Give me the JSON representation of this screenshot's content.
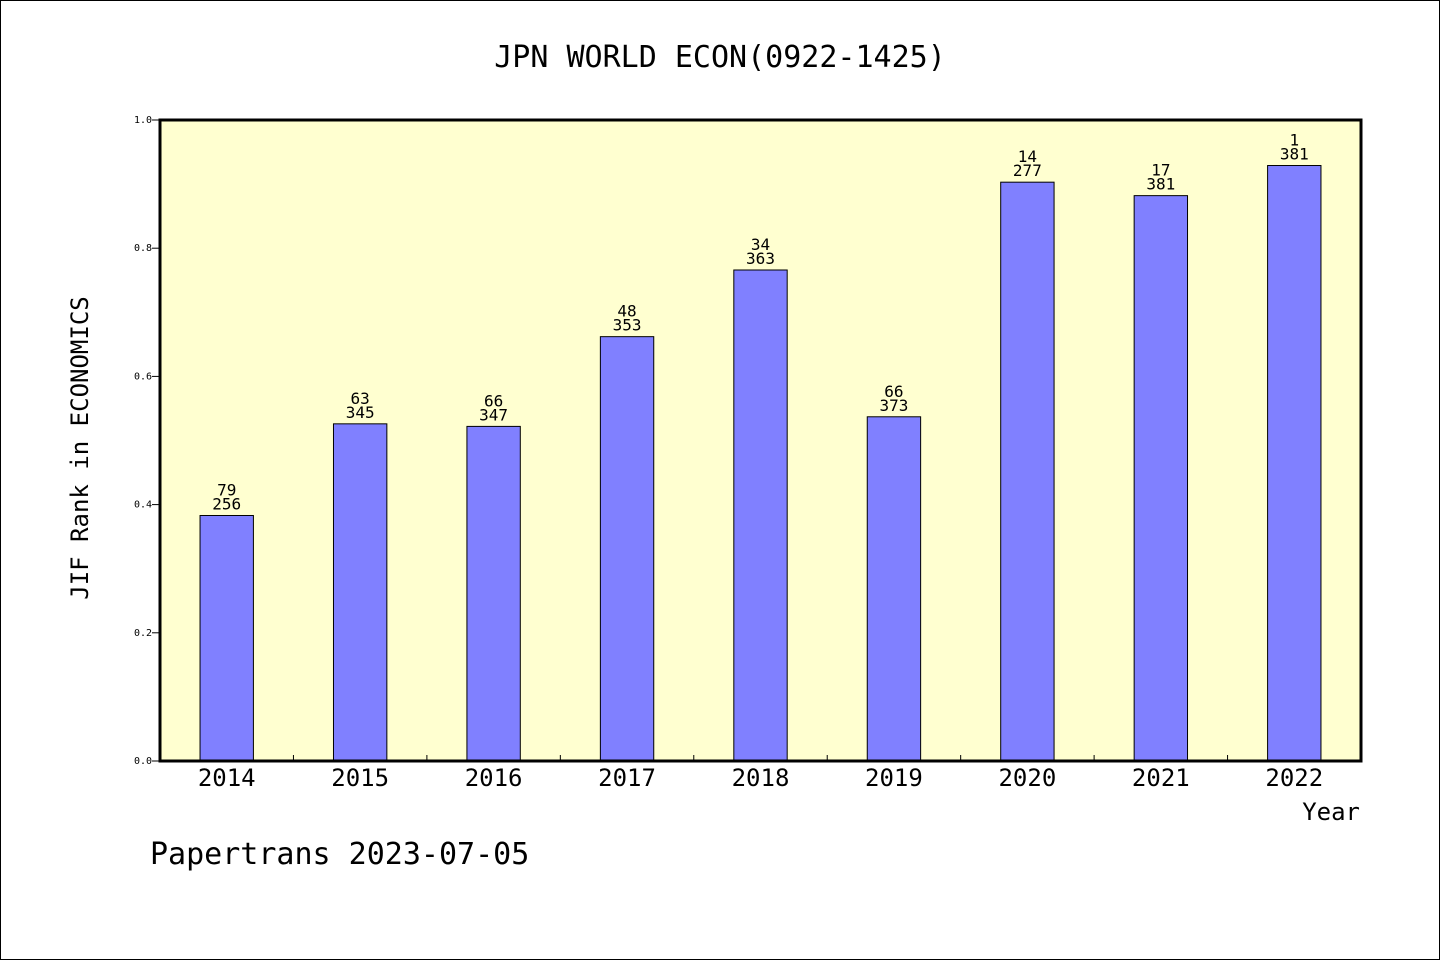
{
  "chart_data": {
    "type": "bar",
    "title": "JPN WORLD ECON(0922-1425)",
    "xlabel": "Year",
    "ylabel": "JIF Rank in ECONOMICS",
    "categories": [
      "2014",
      "2015",
      "2016",
      "2017",
      "2018",
      "2019",
      "2020",
      "2021",
      "2022"
    ],
    "values": [
      0.383,
      0.526,
      0.522,
      0.662,
      0.766,
      0.537,
      0.903,
      0.882,
      0.929
    ],
    "ranks": [
      "79",
      "63",
      "66",
      "48",
      "34",
      "66",
      "14",
      "17",
      "1"
    ],
    "totals": [
      "256",
      "345",
      "347",
      "353",
      "363",
      "373",
      "277",
      "381",
      "381"
    ],
    "ylim": [
      0,
      1.0
    ],
    "yticks": [
      "0.0",
      "0.2",
      "0.4",
      "0.6",
      "0.8",
      "1.0"
    ],
    "grid": false,
    "colors": {
      "bar": "#8080ff",
      "plot_background": "#ffffd0",
      "axis": "#000000"
    }
  },
  "footer": {
    "text": "Papertrans 2023-07-05"
  }
}
